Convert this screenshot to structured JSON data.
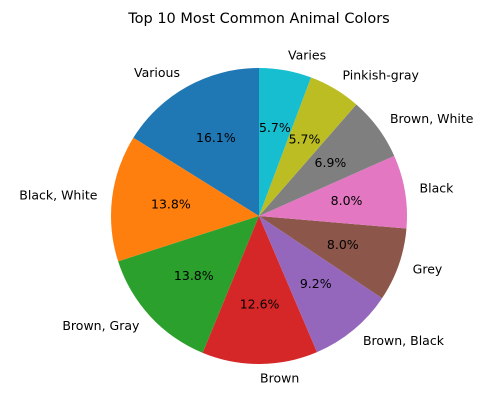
{
  "chart_data": {
    "type": "pie",
    "title": "Top 10 Most Common Animal Colors",
    "categories": [
      "Various",
      "Black, White",
      "Brown, Gray",
      "Brown",
      "Brown, Black",
      "Grey",
      "Black",
      "Brown, White",
      "Pinkish-gray",
      "Varies"
    ],
    "values": [
      16.1,
      13.8,
      13.8,
      12.6,
      9.2,
      8.0,
      8.0,
      6.9,
      5.7,
      5.7
    ],
    "labels_pct": [
      "16.1%",
      "13.8%",
      "13.8%",
      "12.6%",
      "9.2%",
      "8.0%",
      "8.0%",
      "6.9%",
      "5.7%",
      "5.7%"
    ],
    "colors": [
      "#1f77b4",
      "#ff7f0e",
      "#2ca02c",
      "#d62728",
      "#9467bd",
      "#8c564b",
      "#e377c2",
      "#7f7f7f",
      "#bcbd22",
      "#17becf"
    ],
    "start_angle_deg": 90,
    "direction": "counterclockwise",
    "legend": "none"
  }
}
